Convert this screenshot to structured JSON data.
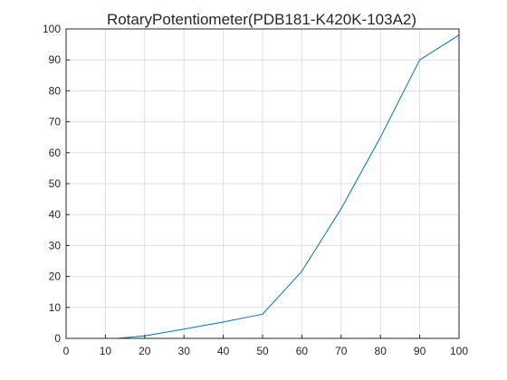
{
  "chart_data": {
    "type": "line",
    "title": "RotaryPotentiometer(PDB181-K420K-103A2)",
    "xlabel": "",
    "ylabel": "",
    "xlim": [
      0,
      100
    ],
    "ylim": [
      0,
      100
    ],
    "xticks": [
      0,
      10,
      20,
      30,
      40,
      50,
      60,
      70,
      80,
      90,
      100
    ],
    "yticks": [
      0,
      10,
      20,
      30,
      40,
      50,
      60,
      70,
      80,
      90,
      100
    ],
    "grid": true,
    "series": [
      {
        "color": "#0072bd",
        "x": [
          0,
          10,
          13,
          20,
          30,
          40,
          50,
          60,
          70,
          80,
          90,
          100
        ],
        "y": [
          0,
          0,
          0,
          0.8,
          3,
          5.3,
          7.8,
          21.7,
          41.9,
          65,
          90,
          98
        ]
      }
    ]
  }
}
